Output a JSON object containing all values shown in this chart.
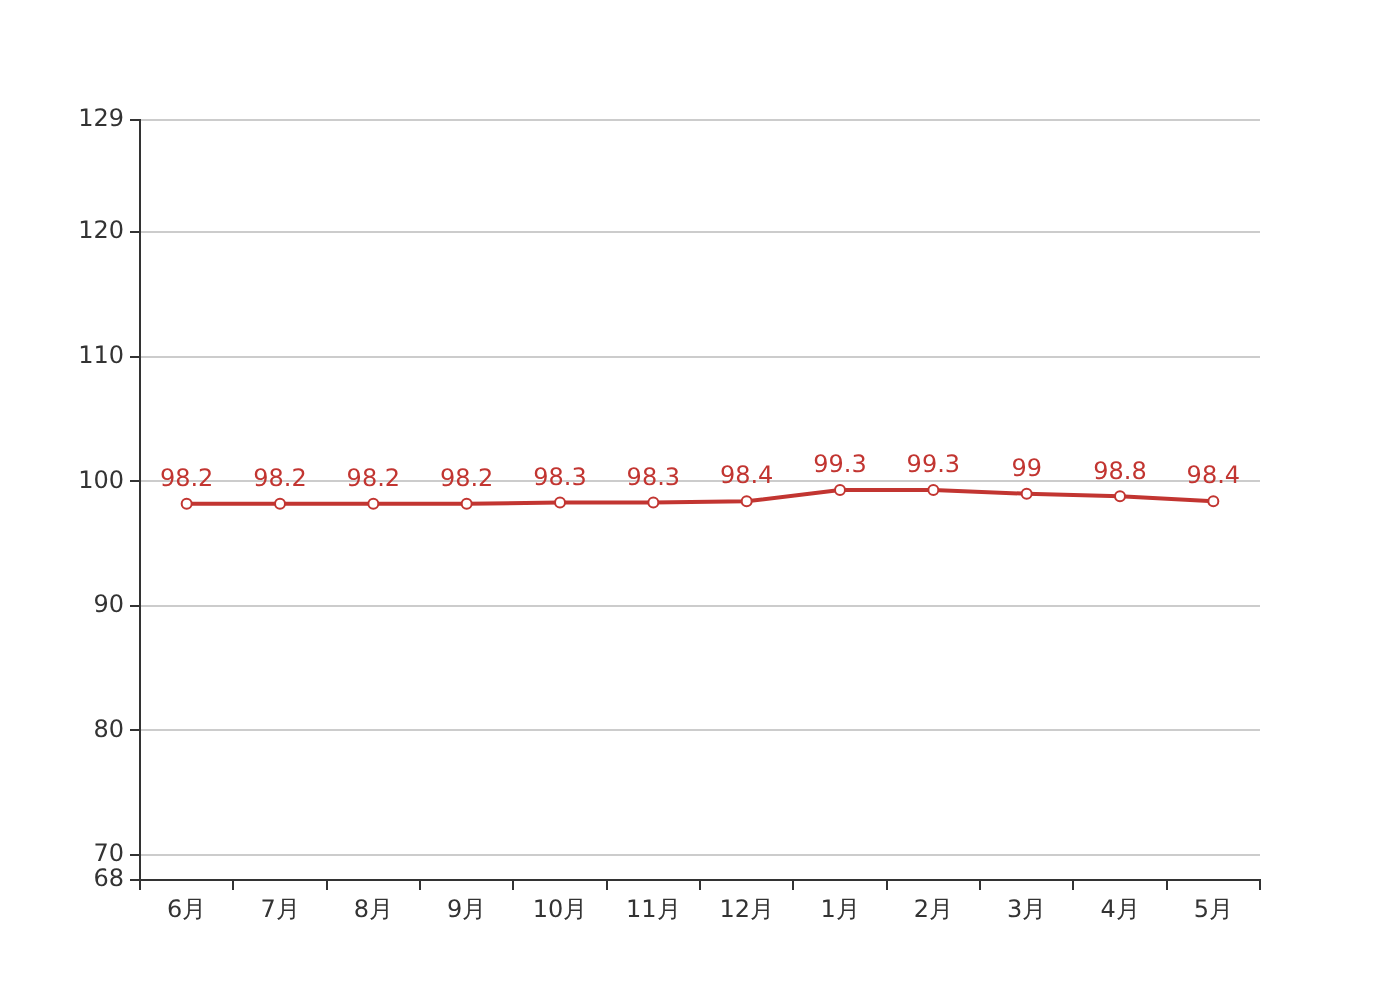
{
  "chart_data": {
    "type": "line",
    "categories": [
      "6月",
      "7月",
      "8月",
      "9月",
      "10月",
      "11月",
      "12月",
      "1月",
      "2月",
      "3月",
      "4月",
      "5月"
    ],
    "series": [
      {
        "color": "#c23531",
        "values": [
          98.2,
          98.2,
          98.2,
          98.2,
          98.3,
          98.3,
          98.4,
          99.3,
          99.3,
          99,
          98.8,
          98.4
        ]
      }
    ],
    "ylim": [
      68,
      129
    ],
    "yticks": [
      68,
      70,
      80,
      90,
      100,
      110,
      120,
      129
    ],
    "grid": "y",
    "legend": false,
    "marker": "circle",
    "line_style": "solid",
    "data_labels": true
  }
}
